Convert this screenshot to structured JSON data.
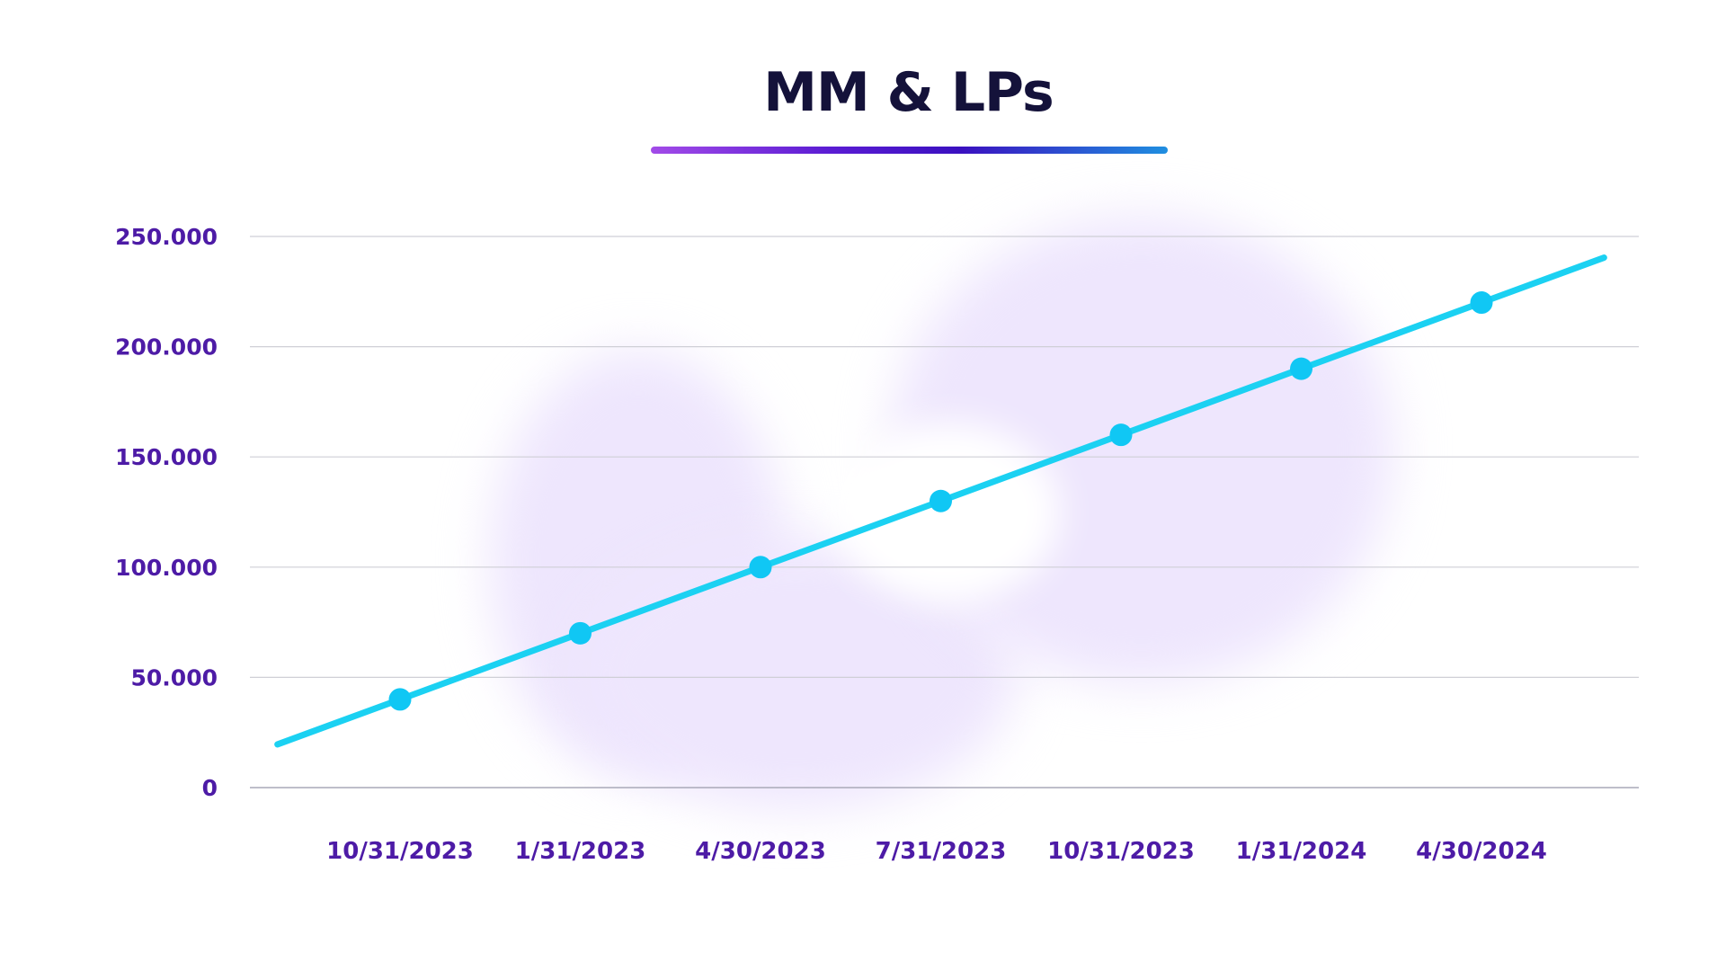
{
  "chart_data": {
    "type": "line",
    "title": "MM & LPs",
    "xlabel": "",
    "ylabel": "",
    "categories": [
      "10/31/2023",
      "1/31/2023",
      "4/30/2023",
      "7/31/2023",
      "10/31/2023",
      "1/31/2024",
      "4/30/2024"
    ],
    "series": [
      {
        "values": [
          40000,
          70000,
          100000,
          130000,
          160000,
          190000,
          220000
        ]
      }
    ],
    "ylim": [
      0,
      250000
    ],
    "yticks": [
      {
        "value": 0,
        "label": "0"
      },
      {
        "value": 50000,
        "label": "50.000"
      },
      {
        "value": 100000,
        "label": "100.000"
      },
      {
        "value": 150000,
        "label": "150.000"
      },
      {
        "value": 200000,
        "label": "200.000"
      },
      {
        "value": 250000,
        "label": "250.000"
      }
    ],
    "grid": true,
    "trend_line": true,
    "colors": {
      "line": "#1bd1f2",
      "point": "#10c7f4",
      "tick_label": "#4d1ba6",
      "grid": "#cfcfd6",
      "title": "#14123a"
    }
  }
}
